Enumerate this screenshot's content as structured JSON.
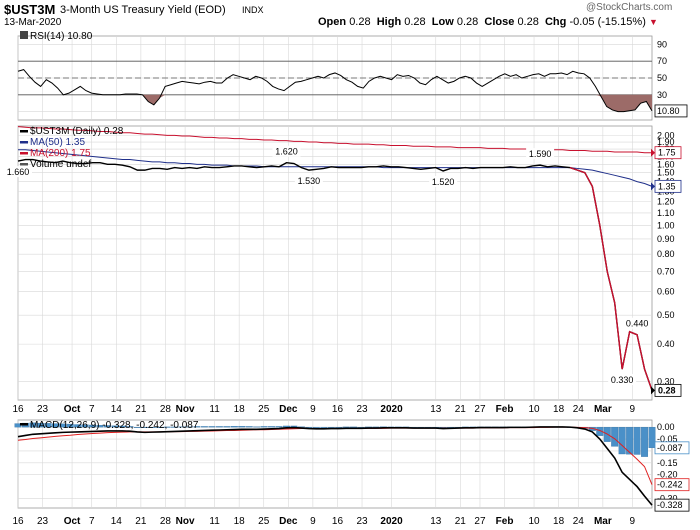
{
  "header": {
    "symbol": "$UST3M",
    "name": "3-Month US Treasury Yield (EOD)",
    "exchange": "INDX",
    "date": "13-Mar-2020",
    "watermark": "@StockCharts.com",
    "quote": {
      "open_label": "Open",
      "open": "0.28",
      "high_label": "High",
      "high": "0.28",
      "low_label": "Low",
      "low": "0.28",
      "close_label": "Close",
      "close": "0.28",
      "chg_label": "Chg",
      "chg": "-0.05 (-15.15%)"
    }
  },
  "colors": {
    "price": "#000000",
    "ma50": "#1f2f8a",
    "ma200": "#c8102e",
    "rsi_line": "#000000",
    "rsi_fill": "#9c6b68",
    "macd_line": "#000000",
    "macd_signal": "#e02020",
    "histogram": "#4a90c8",
    "grid": "#d8d8d8",
    "down_arrow": "#c8102e"
  },
  "chart_data": [
    {
      "type": "line",
      "panel": "rsi",
      "title": "RSI(14) 10.80",
      "ylim": [
        0,
        100
      ],
      "y_ticks": [
        "90",
        "70",
        "50",
        "30",
        "10"
      ],
      "reference_lines": [
        70,
        50,
        30
      ],
      "current_label": "10.80",
      "series": [
        {
          "name": "RSI(14)",
          "values": [
            58,
            60,
            52,
            45,
            40,
            48,
            44,
            38,
            30,
            32,
            36,
            40,
            35,
            32,
            31,
            30,
            30,
            30,
            30,
            31,
            31,
            31,
            30,
            22,
            18,
            26,
            40,
            42,
            44,
            46,
            45,
            44,
            43,
            45,
            46,
            44,
            44,
            50,
            54,
            52,
            50,
            48,
            52,
            50,
            46,
            40,
            37,
            35,
            40,
            45,
            46,
            48,
            50,
            52,
            50,
            54,
            56,
            53,
            48,
            45,
            40,
            38,
            46,
            50,
            52,
            50,
            48,
            54,
            52,
            53,
            50,
            44,
            42,
            48,
            52,
            48,
            44,
            46,
            50,
            52,
            50,
            44,
            40,
            44,
            48,
            52,
            55,
            52,
            54,
            50,
            52,
            54,
            55,
            52,
            55,
            55,
            56,
            54,
            58,
            56,
            55,
            50,
            40,
            28,
            16,
            12,
            10,
            10,
            11,
            12,
            20,
            22,
            10.8
          ]
        }
      ]
    },
    {
      "type": "line",
      "panel": "price",
      "ylabel": "",
      "ylim": [
        0.26,
        2.15
      ],
      "y_scale": "log",
      "y_ticks": [
        "2.00",
        "1.90",
        "1.80",
        "1.70",
        "1.60",
        "1.50",
        "1.40",
        "1.30",
        "1.20",
        "1.10",
        "1.00",
        "0.90",
        "0.80",
        "0.70",
        "0.60",
        "0.50",
        "0.40",
        "0.30"
      ],
      "legend": [
        "$UST3M (Daily) 0.28",
        "MA(50) 1.35",
        "MA(200) 1.75",
        "Volume undef"
      ],
      "annotations": [
        {
          "text": "1.660",
          "index": 0
        },
        {
          "text": "1.620",
          "index": 36
        },
        {
          "text": "1.530",
          "index": 39
        },
        {
          "text": "1.520",
          "index": 57
        },
        {
          "text": "1.590",
          "index": 70
        },
        {
          "text": "0.440",
          "index": 83
        },
        {
          "text": "0.330",
          "index": 81
        }
      ],
      "current_labels": [
        {
          "text": "1.75",
          "value": 1.75,
          "series": "MA(200)"
        },
        {
          "text": "1.35",
          "value": 1.35,
          "series": "MA(50)"
        },
        {
          "text": "0.28",
          "value": 0.28,
          "series": "$UST3M"
        }
      ],
      "series": [
        {
          "name": "$UST3M (Daily)",
          "values": [
            1.64,
            1.66,
            1.66,
            1.64,
            1.63,
            1.62,
            1.64,
            1.62,
            1.61,
            1.61,
            1.62,
            1.62,
            1.6,
            1.6,
            1.59,
            1.57,
            1.53,
            1.53,
            1.55,
            1.55,
            1.54,
            1.56,
            1.55,
            1.56,
            1.55,
            1.57,
            1.56,
            1.56,
            1.57,
            1.58,
            1.58,
            1.57,
            1.56,
            1.57,
            1.58,
            1.57,
            1.62,
            1.61,
            1.56,
            1.53,
            1.54,
            1.55,
            1.57,
            1.56,
            1.56,
            1.56,
            1.56,
            1.57,
            1.57,
            1.58,
            1.57,
            1.57,
            1.56,
            1.55,
            1.54,
            1.55,
            1.56,
            1.52,
            1.55,
            1.55,
            1.56,
            1.55,
            1.56,
            1.56,
            1.56,
            1.56,
            1.57,
            1.56,
            1.56,
            1.58,
            1.59,
            1.57,
            1.58,
            1.57,
            1.56,
            1.53,
            1.5,
            1.35,
            1.0,
            0.7,
            0.55,
            0.33,
            0.44,
            0.43,
            0.33,
            0.28
          ]
        },
        {
          "name": "MA(50)",
          "values": [
            1.79,
            1.79,
            1.78,
            1.77,
            1.76,
            1.75,
            1.74,
            1.73,
            1.72,
            1.71,
            1.7,
            1.69,
            1.68,
            1.67,
            1.66,
            1.66,
            1.65,
            1.64,
            1.63,
            1.63,
            1.62,
            1.62,
            1.61,
            1.61,
            1.6,
            1.6,
            1.59,
            1.59,
            1.59,
            1.58,
            1.58,
            1.58,
            1.58,
            1.57,
            1.57,
            1.57,
            1.57,
            1.57,
            1.57,
            1.57,
            1.57,
            1.57,
            1.57,
            1.57,
            1.57,
            1.57,
            1.57,
            1.57,
            1.57,
            1.56,
            1.56,
            1.56,
            1.56,
            1.56,
            1.56,
            1.56,
            1.56,
            1.56,
            1.56,
            1.56,
            1.56,
            1.56,
            1.56,
            1.56,
            1.56,
            1.56,
            1.56,
            1.56,
            1.56,
            1.56,
            1.56,
            1.56,
            1.56,
            1.56,
            1.56,
            1.55,
            1.54,
            1.53,
            1.51,
            1.49,
            1.47,
            1.45,
            1.43,
            1.4,
            1.38,
            1.35
          ]
        },
        {
          "name": "MA(200)",
          "values": [
            2.14,
            2.13,
            2.12,
            2.12,
            2.11,
            2.1,
            2.1,
            2.09,
            2.08,
            2.08,
            2.07,
            2.06,
            2.06,
            2.05,
            2.04,
            2.04,
            2.03,
            2.02,
            2.02,
            2.01,
            2.0,
            2.0,
            1.99,
            1.99,
            1.98,
            1.97,
            1.97,
            1.96,
            1.96,
            1.95,
            1.95,
            1.94,
            1.94,
            1.93,
            1.93,
            1.92,
            1.92,
            1.91,
            1.91,
            1.9,
            1.9,
            1.89,
            1.89,
            1.88,
            1.88,
            1.87,
            1.87,
            1.87,
            1.86,
            1.86,
            1.85,
            1.85,
            1.85,
            1.84,
            1.84,
            1.84,
            1.83,
            1.83,
            1.83,
            1.82,
            1.82,
            1.82,
            1.82,
            1.81,
            1.81,
            1.81,
            1.8,
            1.8,
            1.8,
            1.8,
            1.79,
            1.79,
            1.79,
            1.79,
            1.78,
            1.78,
            1.78,
            1.77,
            1.77,
            1.77,
            1.76,
            1.76,
            1.76,
            1.76,
            1.75,
            1.75
          ]
        }
      ]
    },
    {
      "type": "line",
      "panel": "macd",
      "title": "MACD(12,26,9) -0.328, -0.242, -0.087",
      "ylim": [
        -0.34,
        0.03
      ],
      "y_ticks": [
        "0.00",
        "-0.05",
        "-0.10",
        "-0.15",
        "-0.20",
        "-0.30"
      ],
      "current_labels": [
        {
          "text": "-0.087",
          "value": -0.087,
          "series": "Histogram"
        },
        {
          "text": "-0.242",
          "value": -0.242,
          "series": "Signal"
        },
        {
          "text": "-0.328",
          "value": -0.328,
          "series": "MACD"
        }
      ],
      "series": [
        {
          "name": "MACD",
          "values": [
            -0.04,
            -0.035,
            -0.03,
            -0.028,
            -0.026,
            -0.024,
            -0.022,
            -0.021,
            -0.02,
            -0.019,
            -0.018,
            -0.017,
            -0.016,
            -0.016,
            -0.016,
            -0.017,
            -0.02,
            -0.022,
            -0.021,
            -0.02,
            -0.019,
            -0.018,
            -0.017,
            -0.016,
            -0.015,
            -0.014,
            -0.013,
            -0.012,
            -0.011,
            -0.01,
            -0.009,
            -0.009,
            -0.009,
            -0.008,
            -0.007,
            -0.006,
            -0.003,
            -0.002,
            -0.004,
            -0.006,
            -0.007,
            -0.007,
            -0.006,
            -0.006,
            -0.005,
            -0.005,
            -0.005,
            -0.004,
            -0.004,
            -0.003,
            -0.003,
            -0.003,
            -0.003,
            -0.004,
            -0.004,
            -0.004,
            -0.004,
            -0.006,
            -0.005,
            -0.004,
            -0.003,
            -0.003,
            -0.002,
            -0.002,
            -0.002,
            -0.002,
            -0.001,
            -0.001,
            -0.001,
            0.0,
            0.001,
            0.001,
            0.001,
            0.001,
            0.0,
            -0.003,
            -0.008,
            -0.02,
            -0.05,
            -0.09,
            -0.13,
            -0.19,
            -0.22,
            -0.25,
            -0.29,
            -0.328
          ]
        },
        {
          "name": "Signal",
          "values": [
            -0.055,
            -0.052,
            -0.048,
            -0.045,
            -0.042,
            -0.039,
            -0.036,
            -0.034,
            -0.031,
            -0.029,
            -0.027,
            -0.025,
            -0.023,
            -0.022,
            -0.021,
            -0.02,
            -0.02,
            -0.02,
            -0.02,
            -0.02,
            -0.02,
            -0.019,
            -0.019,
            -0.018,
            -0.018,
            -0.017,
            -0.016,
            -0.015,
            -0.014,
            -0.014,
            -0.013,
            -0.012,
            -0.011,
            -0.011,
            -0.01,
            -0.009,
            -0.008,
            -0.007,
            -0.006,
            -0.006,
            -0.006,
            -0.006,
            -0.006,
            -0.006,
            -0.006,
            -0.006,
            -0.005,
            -0.005,
            -0.005,
            -0.005,
            -0.004,
            -0.004,
            -0.004,
            -0.004,
            -0.004,
            -0.004,
            -0.004,
            -0.004,
            -0.004,
            -0.004,
            -0.004,
            -0.004,
            -0.003,
            -0.003,
            -0.003,
            -0.003,
            -0.002,
            -0.002,
            -0.002,
            -0.002,
            -0.001,
            -0.001,
            0.0,
            0.0,
            0.0,
            -0.001,
            -0.002,
            -0.005,
            -0.014,
            -0.029,
            -0.049,
            -0.077,
            -0.106,
            -0.135,
            -0.166,
            -0.242
          ]
        },
        {
          "name": "Histogram",
          "values": [
            0.015,
            0.017,
            0.018,
            0.017,
            0.016,
            0.015,
            0.014,
            0.013,
            0.011,
            0.01,
            0.009,
            0.008,
            0.007,
            0.006,
            0.005,
            0.003,
            0.0,
            -0.002,
            -0.001,
            0.0,
            0.001,
            0.001,
            0.002,
            0.002,
            0.003,
            0.003,
            0.003,
            0.003,
            0.003,
            0.004,
            0.004,
            0.003,
            0.002,
            0.003,
            0.003,
            0.003,
            0.005,
            0.005,
            0.002,
            0.0,
            -0.001,
            -0.001,
            0.0,
            0.0,
            0.001,
            0.001,
            0.0,
            0.001,
            0.001,
            0.002,
            0.001,
            0.001,
            0.001,
            0.0,
            0.0,
            0.0,
            0.0,
            -0.002,
            -0.001,
            0.0,
            0.001,
            0.001,
            0.001,
            0.001,
            0.001,
            0.001,
            0.001,
            0.001,
            0.001,
            0.002,
            0.002,
            0.002,
            0.001,
            0.001,
            0.0,
            -0.002,
            -0.006,
            -0.015,
            -0.036,
            -0.061,
            -0.081,
            -0.113,
            -0.114,
            -0.115,
            -0.124,
            -0.087
          ]
        }
      ]
    }
  ],
  "x_axis": {
    "labels": [
      {
        "text": "16",
        "bold": false,
        "index": 0
      },
      {
        "text": "23",
        "bold": false,
        "index": 5
      },
      {
        "text": "Oct",
        "bold": true,
        "index": 11
      },
      {
        "text": "7",
        "bold": false,
        "index": 15
      },
      {
        "text": "14",
        "bold": false,
        "index": 20
      },
      {
        "text": "21",
        "bold": false,
        "index": 25
      },
      {
        "text": "28",
        "bold": false,
        "index": 30
      },
      {
        "text": "Nov",
        "bold": true,
        "index": 34
      },
      {
        "text": "11",
        "bold": false,
        "index": 40
      },
      {
        "text": "18",
        "bold": false,
        "index": 45
      },
      {
        "text": "25",
        "bold": false,
        "index": 50
      },
      {
        "text": "Dec",
        "bold": true,
        "index": 55
      },
      {
        "text": "9",
        "bold": false,
        "index": 60
      },
      {
        "text": "16",
        "bold": false,
        "index": 65
      },
      {
        "text": "23",
        "bold": false,
        "index": 70
      },
      {
        "text": "2020",
        "bold": true,
        "index": 76
      },
      {
        "text": "13",
        "bold": false,
        "index": 85
      },
      {
        "text": "21",
        "bold": false,
        "index": 90
      },
      {
        "text": "27",
        "bold": false,
        "index": 94
      },
      {
        "text": "Feb",
        "bold": true,
        "index": 99
      },
      {
        "text": "10",
        "bold": false,
        "index": 105
      },
      {
        "text": "18",
        "bold": false,
        "index": 110
      },
      {
        "text": "24",
        "bold": false,
        "index": 114
      },
      {
        "text": "Mar",
        "bold": true,
        "index": 119
      },
      {
        "text": "9",
        "bold": false,
        "index": 125
      }
    ]
  }
}
